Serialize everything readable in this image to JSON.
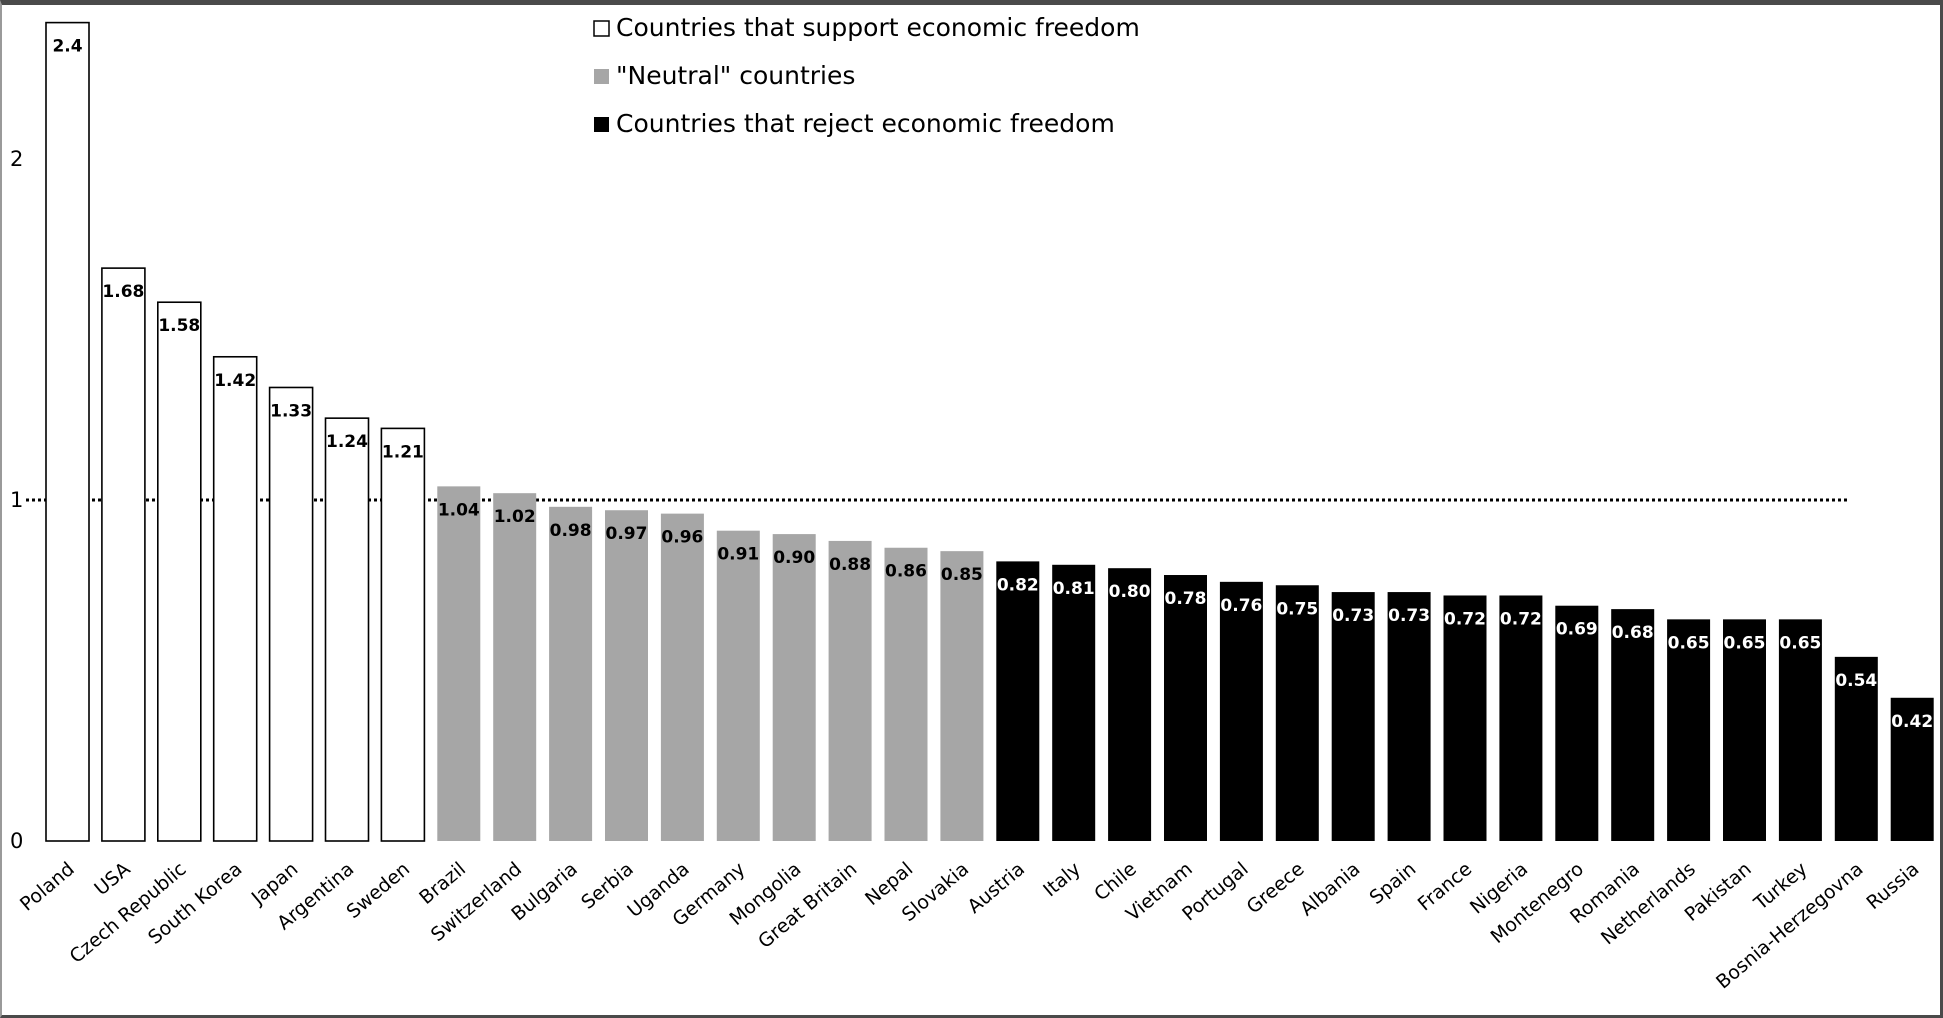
{
  "chart_data": {
    "type": "bar",
    "title": "",
    "xlabel": "",
    "ylabel": "",
    "ylim": [
      0,
      2.4
    ],
    "yticks": [
      0,
      1,
      2
    ],
    "reference_line": {
      "y": 1,
      "style": "dotted"
    },
    "legend_placement": "top-center",
    "legend": [
      {
        "label": "Countries that support economic freedom",
        "color": "#ffffff"
      },
      {
        "label": "\"Neutral\" countries",
        "color": "#a6a6a6"
      },
      {
        "label": "Countries that reject economic freedom",
        "color": "#000000"
      }
    ],
    "categories": [
      "Poland",
      "USA",
      "Czech Republic",
      "South Korea",
      "Japan",
      "Argentina",
      "Sweden",
      "Brazil",
      "Switzerland",
      "Bulgaria",
      "Serbia",
      "Uganda",
      "Germany",
      "Mongolia",
      "Great Britain",
      "Nepal",
      "Slovakia",
      "Austria",
      "Italy",
      "Chile",
      "Vietnam",
      "Portugal",
      "Greece",
      "Albania",
      "Spain",
      "France",
      "Nigeria",
      "Montenegro",
      "Romania",
      "Netherlands",
      "Pakistan",
      "Turkey",
      "Bosnia-Herzegovna",
      "Russia"
    ],
    "values": [
      2.4,
      1.68,
      1.58,
      1.42,
      1.33,
      1.24,
      1.21,
      1.04,
      1.02,
      0.98,
      0.97,
      0.96,
      0.91,
      0.9,
      0.88,
      0.86,
      0.85,
      0.82,
      0.81,
      0.8,
      0.78,
      0.76,
      0.75,
      0.73,
      0.73,
      0.72,
      0.72,
      0.69,
      0.68,
      0.65,
      0.65,
      0.65,
      0.54,
      0.42
    ],
    "value_labels": [
      "2.4",
      "1.68",
      "1.58",
      "1.42",
      "1.33",
      "1.24",
      "1.21",
      "1.04",
      "1.02",
      "0.98",
      "0.97",
      "0.96",
      "0.91",
      "0.90",
      "0.88",
      "0.86",
      "0.85",
      "0.82",
      "0.81",
      "0.80",
      "0.78",
      "0.76",
      "0.75",
      "0.73",
      "0.73",
      "0.72",
      "0.72",
      "0.69",
      "0.68",
      "0.65",
      "0.65",
      "0.65",
      "0.54",
      "0.42"
    ],
    "groups": [
      "support",
      "support",
      "support",
      "support",
      "support",
      "support",
      "support",
      "neutral",
      "neutral",
      "neutral",
      "neutral",
      "neutral",
      "neutral",
      "neutral",
      "neutral",
      "neutral",
      "neutral",
      "reject",
      "reject",
      "reject",
      "reject",
      "reject",
      "reject",
      "reject",
      "reject",
      "reject",
      "reject",
      "reject",
      "reject",
      "reject",
      "reject",
      "reject",
      "reject",
      "reject"
    ],
    "group_colors": {
      "support": "#ffffff",
      "neutral": "#a6a6a6",
      "reject": "#000000"
    },
    "grid": false
  }
}
